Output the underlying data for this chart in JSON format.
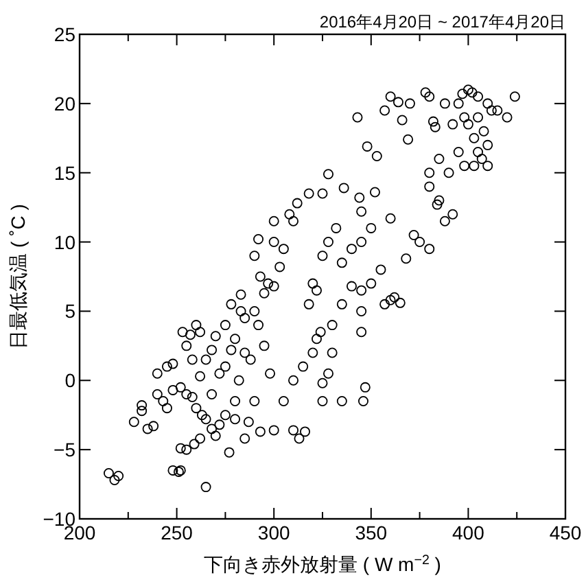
{
  "chart_data": {
    "type": "scatter",
    "title": "2016年4月20日 ~ 2017年4月20日",
    "xlabel": "下向き赤外放射量 ( W m$^{−2}$ )",
    "ylabel": "日最低気温 ( ˚C )",
    "xlim": [
      200,
      450
    ],
    "ylim": [
      -10,
      25
    ],
    "xticks": [
      200,
      {
        "value": 225,
        "label": null
      },
      250,
      {
        "value": 275,
        "label": null
      },
      300,
      {
        "value": 325,
        "label": null
      },
      350,
      {
        "value": 375,
        "label": null
      },
      400,
      {
        "value": 425,
        "label": null
      },
      450
    ],
    "yticks": [
      -10,
      -5,
      0,
      5,
      10,
      15,
      20,
      25
    ],
    "marker": "circle",
    "series": [
      {
        "color": "#000000",
        "x": [
          215,
          218,
          220,
          228,
          232,
          235,
          232,
          238,
          240,
          243,
          245,
          248,
          251,
          252,
          245,
          240,
          248,
          255,
          253,
          257,
          260,
          262,
          248,
          252,
          255,
          258,
          260,
          263,
          265,
          268,
          262,
          252,
          255,
          259,
          265,
          270,
          272,
          268,
          272,
          275,
          278,
          280,
          283,
          285,
          290,
          295,
          297,
          300,
          303,
          300,
          305,
          308,
          312,
          318,
          310,
          295,
          298,
          290,
          287,
          293,
          300,
          310,
          313,
          316,
          305,
          310,
          315,
          320,
          322,
          324,
          325,
          325,
          328,
          330,
          330,
          335,
          345,
          345,
          347,
          346,
          335,
          318,
          320,
          322,
          325,
          328,
          332,
          335,
          340,
          345,
          350,
          340,
          345,
          350,
          355,
          357,
          360,
          362,
          365,
          368,
          372,
          375,
          380,
          384,
          388,
          392,
          380,
          380,
          385,
          390,
          395,
          398,
          385,
          360,
          352,
          345,
          336,
          325,
          328,
          344,
          348,
          353,
          357,
          364,
          369,
          378,
          383,
          397,
          424,
          400,
          402,
          405,
          395,
          410,
          412,
          398,
          405,
          415,
          420,
          392,
          400,
          408,
          403,
          410,
          405,
          407,
          403,
          410,
          388,
          380,
          370,
          360,
          343,
          366,
          382,
          280,
          282,
          285,
          288,
          292,
          293,
          278,
          283,
          290,
          292,
          300,
          265,
          268,
          270,
          262,
          258,
          275,
          275,
          280,
          285,
          277
        ],
        "values": [
          -6.7,
          -7.2,
          -6.9,
          -3,
          -2.2,
          -3.5,
          -1.8,
          -3.3,
          -1,
          -1.5,
          -2,
          -6.5,
          -6.6,
          -6.5,
          1,
          0.5,
          1.2,
          2.5,
          3.5,
          3.3,
          4,
          3.5,
          -0.7,
          -0.5,
          -1,
          -1.2,
          -2,
          -2.5,
          -2.8,
          -3.5,
          -4.2,
          -4.9,
          -5,
          -4.6,
          -7.7,
          -4,
          -3.2,
          -1,
          0.5,
          1,
          2.2,
          3,
          5,
          4.5,
          5,
          6.3,
          7,
          6.8,
          8.2,
          10,
          9.5,
          12,
          12.8,
          13.5,
          11.5,
          2.5,
          0.5,
          -1.5,
          -3,
          -3.7,
          -3.6,
          -3.6,
          -4.2,
          -3.7,
          -1.5,
          0,
          1,
          2,
          3,
          3.5,
          -0.2,
          -1.5,
          0.5,
          2,
          4,
          5.5,
          5,
          3.5,
          -0.5,
          -1.5,
          -1.5,
          5.5,
          7,
          6.5,
          9,
          10,
          11,
          8.5,
          9.5,
          10,
          11,
          6.8,
          6.5,
          7,
          8,
          5.5,
          5.8,
          6,
          5.6,
          8.8,
          10.5,
          10,
          9.5,
          12.7,
          11.5,
          12,
          14,
          15,
          16,
          15,
          16.5,
          15.5,
          13,
          11.7,
          13.6,
          12.2,
          13.9,
          13.5,
          14.9,
          13.2,
          16.9,
          16.2,
          19.5,
          20.1,
          17.4,
          20.8,
          18.3,
          20.7,
          20.5,
          21,
          20.8,
          20.5,
          20,
          20,
          19.5,
          19,
          19,
          19.5,
          19,
          18.5,
          18.5,
          18,
          17.5,
          17,
          16.5,
          16,
          15.5,
          15.5,
          20,
          20.5,
          20,
          20.5,
          19,
          18.8,
          18.7,
          -1.5,
          0,
          2,
          1.5,
          4,
          7.5,
          5.5,
          6.2,
          9,
          10.2,
          11.5,
          1.5,
          2.2,
          3.2,
          0.3,
          1.5,
          4,
          -2.5,
          -2.8,
          -4.2,
          -5.2
        ]
      }
    ]
  }
}
